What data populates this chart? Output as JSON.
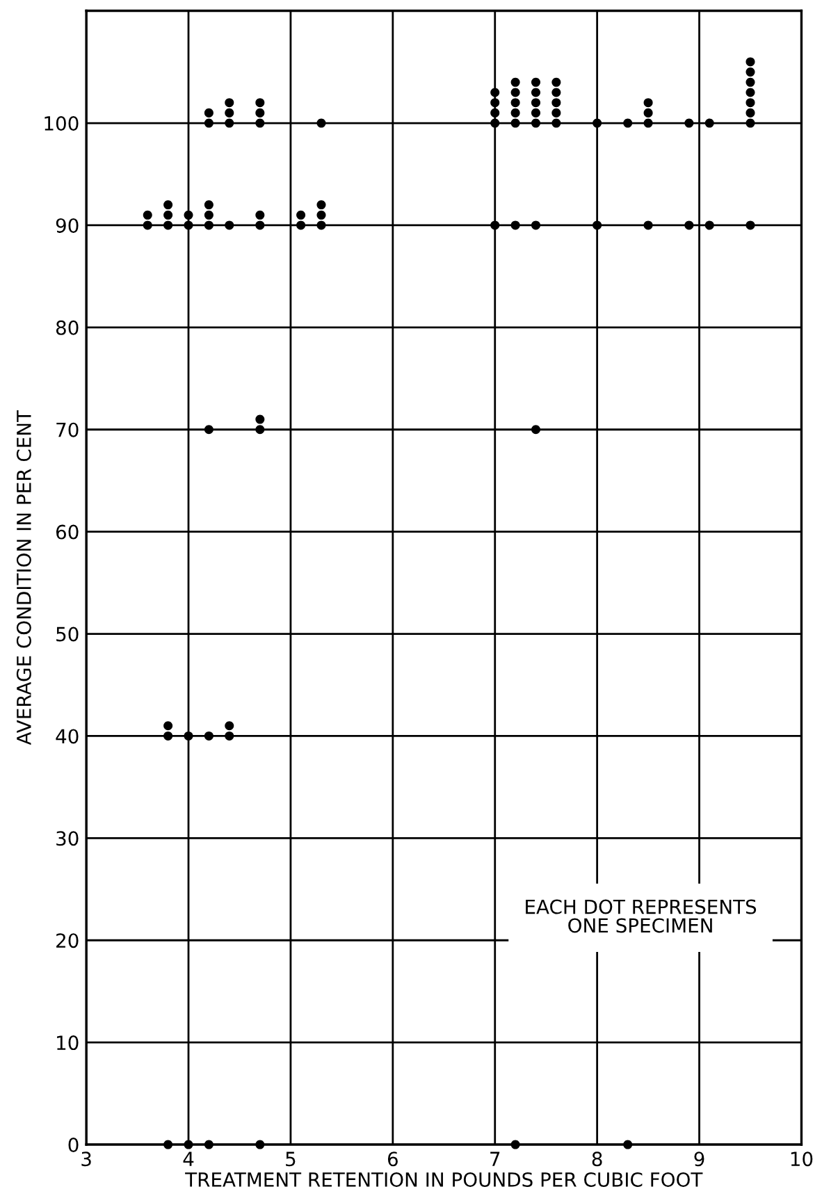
{
  "chart_data": {
    "type": "scatter",
    "xlabel": "TREATMENT RETENTION IN POUNDS PER CUBIC FOOT",
    "ylabel": "AVERAGE CONDITION IN PER CENT",
    "series": [
      {
        "color": "#000000",
        "x": [
          4.2,
          4.2,
          4.4,
          4.4,
          4.4,
          4.7,
          4.7,
          4.7,
          5.3,
          3.6,
          3.6,
          3.8,
          3.8,
          3.8,
          4.0,
          4.0,
          4.2,
          4.2,
          4.2,
          4.4,
          4.7,
          4.7,
          5.1,
          5.1,
          5.3,
          5.3,
          5.3,
          7.0,
          7.0,
          7.0,
          7.0,
          7.2,
          7.2,
          7.2,
          7.2,
          7.2,
          7.4,
          7.4,
          7.4,
          7.4,
          7.4,
          7.6,
          7.6,
          7.6,
          7.6,
          7.6,
          8.0,
          8.3,
          8.5,
          8.5,
          8.5,
          8.9,
          9.1,
          9.5,
          9.5,
          9.5,
          9.5,
          9.5,
          9.5,
          9.5,
          7.0,
          7.2,
          7.4,
          8.0,
          8.5,
          8.9,
          9.1,
          9.5,
          4.2,
          4.7,
          4.7,
          7.4,
          3.8,
          3.8,
          4.0,
          4.2,
          4.4,
          4.4,
          3.8,
          4.0,
          4.2,
          4.7,
          7.2,
          8.3
        ],
        "values": [
          100,
          101,
          100,
          101,
          102,
          100,
          101,
          102,
          100,
          90,
          91,
          90,
          91,
          92,
          90,
          91,
          90,
          91,
          92,
          90,
          90,
          91,
          90,
          91,
          90,
          91,
          92,
          100,
          101,
          102,
          103,
          100,
          101,
          102,
          103,
          104,
          100,
          101,
          102,
          103,
          104,
          100,
          101,
          102,
          103,
          104,
          100,
          100,
          100,
          101,
          102,
          100,
          100,
          100,
          101,
          102,
          103,
          104,
          105,
          106,
          90,
          90,
          90,
          90,
          90,
          90,
          90,
          90,
          70,
          70,
          71,
          70,
          40,
          41,
          40,
          40,
          40,
          41,
          0,
          0,
          0,
          0,
          0,
          0
        ]
      }
    ],
    "xlim": [
      3,
      10
    ],
    "xticks": [
      3,
      4,
      5,
      6,
      7,
      8,
      9,
      10
    ],
    "ylim": [
      0,
      111
    ],
    "yticks": [
      0,
      10,
      20,
      30,
      40,
      50,
      60,
      70,
      80,
      90,
      100
    ],
    "grid": true,
    "marker": "circle",
    "annotations": [
      "EACH DOT REPRESENTS\nONE SPECIMEN"
    ]
  }
}
